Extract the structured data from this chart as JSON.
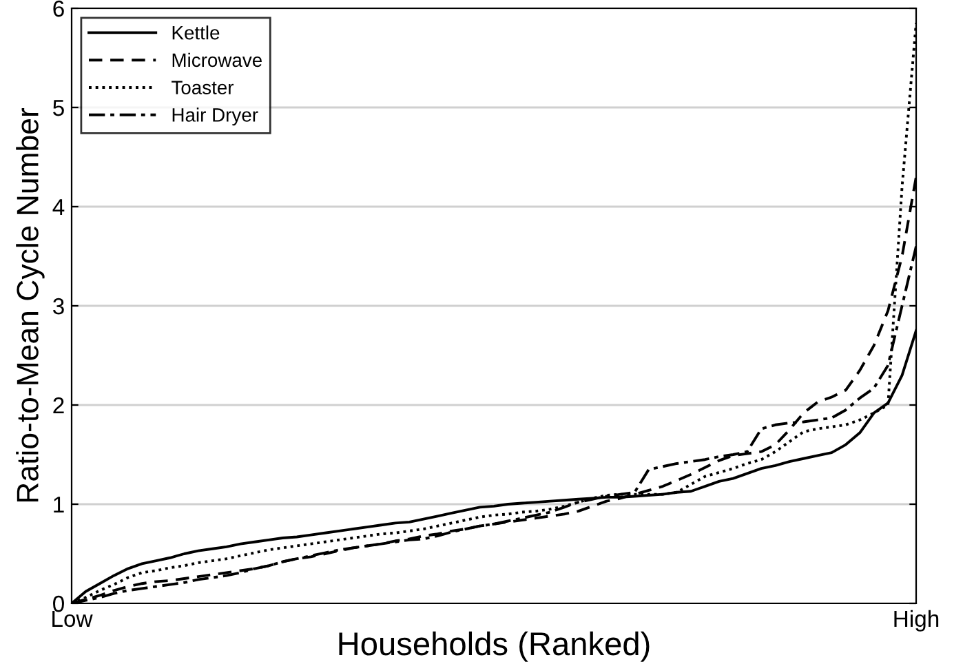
{
  "chart_data": {
    "type": "line",
    "xlabel": "Households (Ranked)",
    "ylabel": "Ratio-to-Mean Cycle Number",
    "categories": [
      "Low",
      null,
      null,
      null,
      null,
      null,
      null,
      null,
      null,
      null,
      null,
      null,
      null,
      null,
      null,
      null,
      null,
      null,
      null,
      null,
      null,
      null,
      null,
      null,
      null,
      null,
      null,
      null,
      null,
      null,
      null,
      null,
      null,
      null,
      null,
      null,
      null,
      null,
      null,
      null,
      null,
      null,
      null,
      null,
      null,
      null,
      null,
      null,
      null,
      null,
      null,
      null,
      null,
      null,
      null,
      null,
      null,
      null,
      null,
      null,
      "High"
    ],
    "ylim": [
      0,
      6
    ],
    "yticks": [
      0,
      1,
      2,
      3,
      4,
      5,
      6
    ],
    "grid": "y",
    "legend": "top left",
    "marker": "none",
    "series": [
      {
        "name": "Kettle",
        "color": "#000000",
        "line_style": "solid",
        "values": [
          0,
          0.12,
          0.2,
          0.28,
          0.35,
          0.4,
          0.43,
          0.46,
          0.5,
          0.53,
          0.55,
          0.57,
          0.6,
          0.62,
          0.64,
          0.66,
          0.67,
          0.69,
          0.71,
          0.73,
          0.75,
          0.77,
          0.79,
          0.81,
          0.82,
          0.85,
          0.88,
          0.91,
          0.94,
          0.97,
          0.98,
          1.0,
          1.01,
          1.02,
          1.03,
          1.04,
          1.05,
          1.06,
          1.07,
          1.07,
          1.08,
          1.09,
          1.1,
          1.12,
          1.13,
          1.18,
          1.23,
          1.26,
          1.31,
          1.36,
          1.39,
          1.43,
          1.46,
          1.49,
          1.52,
          1.6,
          1.72,
          1.92,
          2.02,
          2.3,
          2.75
        ]
      },
      {
        "name": "Microwave",
        "color": "#000000",
        "line_style": "dashed",
        "values": [
          0,
          0.04,
          0.08,
          0.13,
          0.17,
          0.2,
          0.22,
          0.23,
          0.25,
          0.27,
          0.29,
          0.31,
          0.33,
          0.35,
          0.38,
          0.42,
          0.45,
          0.47,
          0.5,
          0.53,
          0.56,
          0.58,
          0.6,
          0.63,
          0.65,
          0.68,
          0.7,
          0.73,
          0.75,
          0.78,
          0.8,
          0.82,
          0.84,
          0.86,
          0.88,
          0.9,
          0.93,
          0.98,
          1.03,
          1.06,
          1.1,
          1.14,
          1.18,
          1.24,
          1.3,
          1.37,
          1.44,
          1.49,
          1.51,
          1.53,
          1.6,
          1.75,
          1.92,
          2.03,
          2.08,
          2.15,
          2.35,
          2.6,
          2.95,
          3.5,
          4.3
        ]
      },
      {
        "name": "Toaster",
        "color": "#000000",
        "line_style": "dotted",
        "values": [
          0,
          0.06,
          0.13,
          0.19,
          0.26,
          0.31,
          0.33,
          0.36,
          0.38,
          0.41,
          0.43,
          0.45,
          0.48,
          0.51,
          0.54,
          0.56,
          0.58,
          0.6,
          0.62,
          0.64,
          0.66,
          0.68,
          0.7,
          0.71,
          0.73,
          0.75,
          0.78,
          0.81,
          0.84,
          0.87,
          0.89,
          0.9,
          0.92,
          0.93,
          0.95,
          0.98,
          1.02,
          1.06,
          1.09,
          1.1,
          1.1,
          1.1,
          1.1,
          1.12,
          1.2,
          1.28,
          1.32,
          1.36,
          1.41,
          1.45,
          1.53,
          1.63,
          1.73,
          1.76,
          1.78,
          1.8,
          1.85,
          1.92,
          2.0,
          4.2,
          5.85
        ]
      },
      {
        "name": "Hair Dryer",
        "color": "#000000",
        "line_style": "dashdot",
        "values": [
          0,
          0.03,
          0.06,
          0.1,
          0.13,
          0.15,
          0.17,
          0.19,
          0.21,
          0.24,
          0.26,
          0.28,
          0.31,
          0.35,
          0.38,
          0.42,
          0.45,
          0.48,
          0.51,
          0.54,
          0.56,
          0.58,
          0.6,
          0.62,
          0.64,
          0.65,
          0.68,
          0.72,
          0.75,
          0.78,
          0.8,
          0.83,
          0.86,
          0.89,
          0.92,
          0.97,
          1.02,
          1.05,
          1.08,
          1.1,
          1.12,
          1.35,
          1.38,
          1.41,
          1.43,
          1.45,
          1.48,
          1.5,
          1.53,
          1.76,
          1.8,
          1.82,
          1.83,
          1.85,
          1.87,
          1.95,
          2.07,
          2.17,
          2.4,
          3.0,
          3.6
        ]
      }
    ]
  }
}
